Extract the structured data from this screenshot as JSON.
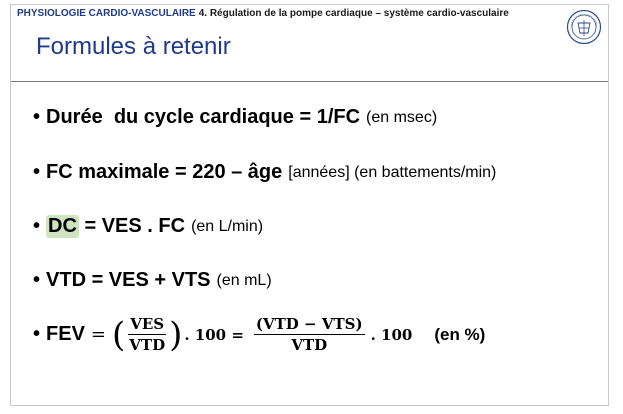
{
  "header": {
    "course": "PHYSIOLOGIE CARDIO-VASCULAIRE",
    "chapter": "4. Régulation de la pompe cardiaque – système cardio-vasculaire"
  },
  "title": "Formules à retenir",
  "formulas": [
    {
      "bold": "Durée  du cycle cardiaque = 1/FC",
      "unit": "(en msec)"
    },
    {
      "bold": "FC maximale = 220 – âge",
      "unit": "[années] (en battements/min)"
    },
    {
      "highlight": "DC",
      "bold": " = VES . FC",
      "unit": "(en L/min)"
    },
    {
      "bold": "VTD = VES + VTS",
      "unit": "(en mL)"
    }
  ],
  "fev": {
    "label": "FEV",
    "eq": "=",
    "frac1_num": "VES",
    "frac1_den": "VTD",
    "times1": ". 100 =",
    "frac2_num": "(VTD − VTS)",
    "frac2_den": "VTD",
    "times2": ". 100",
    "unit": "(en %)"
  },
  "icons": {
    "logo": "university-seal-icon"
  }
}
